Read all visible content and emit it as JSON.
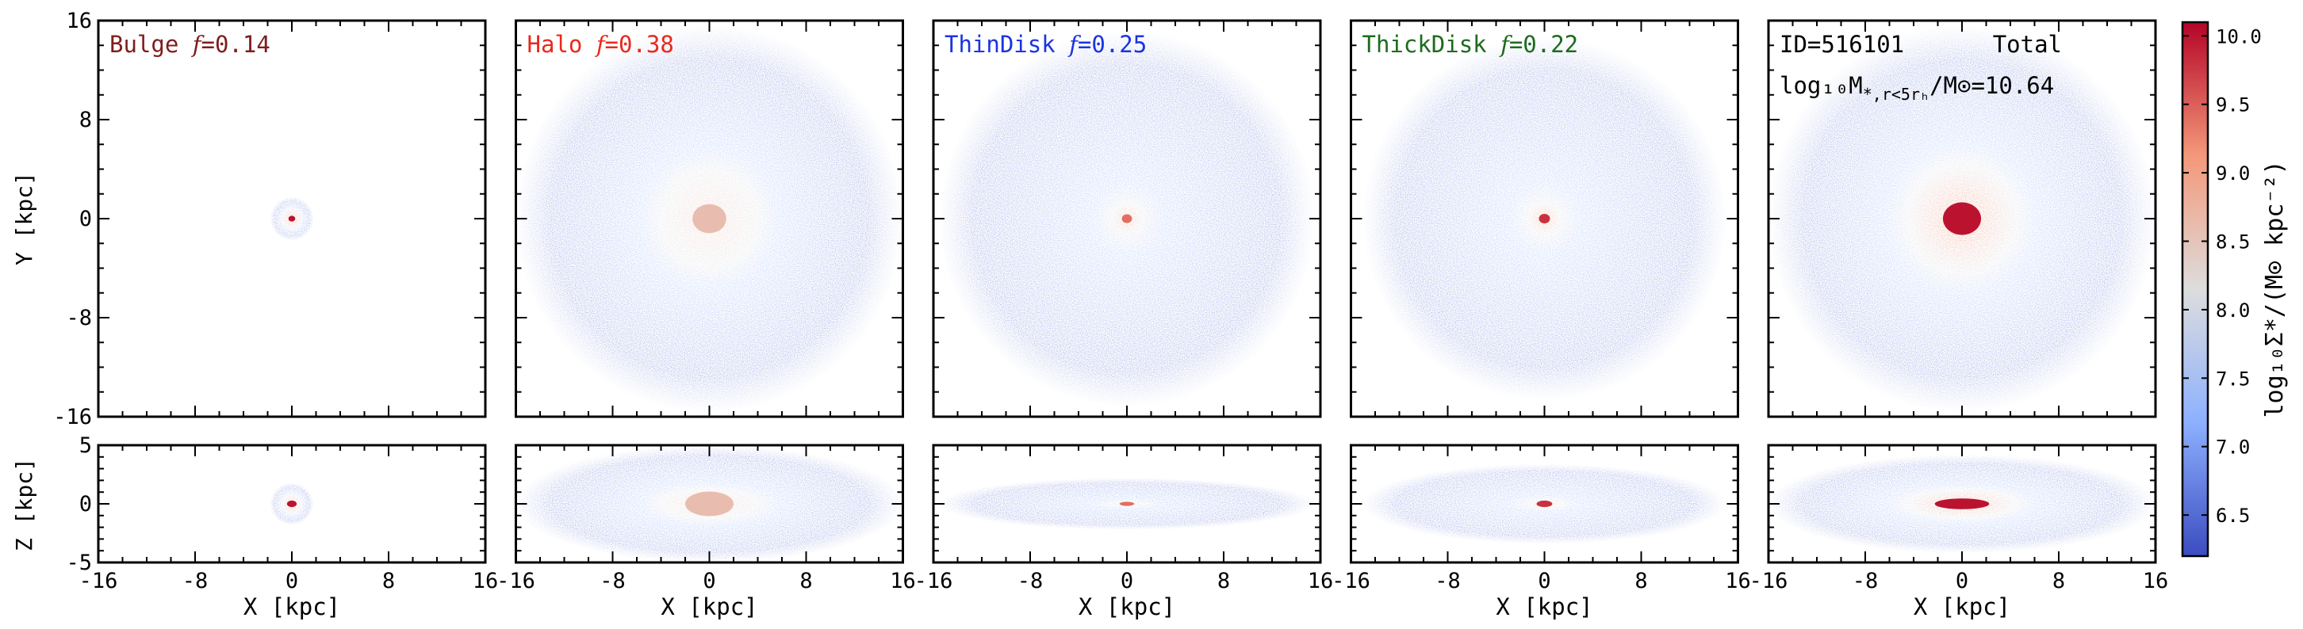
{
  "figure": {
    "xlabel": "X [kpc]",
    "ylabel_top": "Y [kpc]",
    "ylabel_bottom": "Z [kpc]",
    "colorbar_label": "log₁₀Σ*/(M⊙ kpc⁻²)"
  },
  "chart_data": [
    {
      "type": "heatmap",
      "panel": "Bulge",
      "title_prefix": "Bulge",
      "f_value": "=0.14",
      "title_color": "#7f1d1d",
      "face_on": {
        "xlim": [
          -16,
          16
        ],
        "ylim": [
          -16,
          16
        ],
        "xlabel": "X [kpc]",
        "ylabel": "Y [kpc]",
        "yticks": [
          "16",
          "8",
          "0",
          "-8",
          "-16"
        ]
      },
      "edge_on": {
        "xlim": [
          -16,
          16
        ],
        "ylim": [
          -5,
          5
        ],
        "xlabel": "X [kpc]",
        "ylabel": "Z [kpc]",
        "yticks": [
          "5",
          "0",
          "-5"
        ]
      },
      "xticks": [
        "-16",
        "-8",
        "0",
        "8",
        "16"
      ],
      "morphology": {
        "extent_kpc": 1.8,
        "core_kpc": 0.8,
        "peak_log_sigma": 10.0,
        "edge_extent_z_kpc": 1.8,
        "edge_core_z_kpc": 0.8
      }
    },
    {
      "type": "heatmap",
      "panel": "Halo",
      "title_prefix": "Halo",
      "f_value": "=0.38",
      "title_color": "#e8291c",
      "face_on": {
        "xlim": [
          -16,
          16
        ],
        "ylim": [
          -16,
          16
        ],
        "xlabel": "X [kpc]"
      },
      "edge_on": {
        "xlim": [
          -16,
          16
        ],
        "ylim": [
          -5,
          5
        ],
        "xlabel": "X [kpc]"
      },
      "xticks": [
        "-16",
        "-8",
        "0",
        "8",
        "16"
      ],
      "morphology": {
        "extent_kpc": 16,
        "core_kpc": 4,
        "peak_log_sigma": 8.6,
        "edge_extent_z_kpc": 5,
        "edge_core_z_kpc": 3
      }
    },
    {
      "type": "heatmap",
      "panel": "ThinDisk",
      "title_prefix": "ThinDisk",
      "f_value": "=0.25",
      "title_color": "#1a35e0",
      "face_on": {
        "xlim": [
          -16,
          16
        ],
        "ylim": [
          -16,
          16
        ],
        "xlabel": "X [kpc]"
      },
      "edge_on": {
        "xlim": [
          -16,
          16
        ],
        "ylim": [
          -5,
          5
        ],
        "xlabel": "X [kpc]"
      },
      "xticks": [
        "-16",
        "-8",
        "0",
        "8",
        "16"
      ],
      "morphology": {
        "extent_kpc": 15.5,
        "core_kpc": 1.2,
        "peak_log_sigma": 9.4,
        "edge_extent_z_kpc": 2.2,
        "edge_core_z_kpc": 0.5
      }
    },
    {
      "type": "heatmap",
      "panel": "ThickDisk",
      "title_prefix": "ThickDisk",
      "f_value": "=0.22",
      "title_color": "#1d6b1d",
      "face_on": {
        "xlim": [
          -16,
          16
        ],
        "ylim": [
          -16,
          16
        ],
        "xlabel": "X [kpc]"
      },
      "edge_on": {
        "xlim": [
          -16,
          16
        ],
        "ylim": [
          -5,
          5
        ],
        "xlabel": "X [kpc]"
      },
      "xticks": [
        "-16",
        "-8",
        "0",
        "8",
        "16"
      ],
      "morphology": {
        "extent_kpc": 15,
        "core_kpc": 1.3,
        "peak_log_sigma": 9.8,
        "edge_extent_z_kpc": 3.4,
        "edge_core_z_kpc": 0.8
      }
    },
    {
      "type": "heatmap",
      "panel": "Total",
      "id_label": "ID=516101",
      "total_label": "Total",
      "mass_label_prefix": "log₁₀M",
      "mass_label_sub": "*,r<5rₕ",
      "mass_label_suffix": "/M⊙=10.64",
      "title_color": "#000000",
      "face_on": {
        "xlim": [
          -16,
          16
        ],
        "ylim": [
          -16,
          16
        ],
        "xlabel": "X [kpc]"
      },
      "edge_on": {
        "xlim": [
          -16,
          16
        ],
        "ylim": [
          -5,
          5
        ],
        "xlabel": "X [kpc]"
      },
      "xticks": [
        "-16",
        "-8",
        "0",
        "8",
        "16"
      ],
      "morphology": {
        "extent_kpc": 16,
        "core_kpc": 4.5,
        "peak_log_sigma": 10.0,
        "edge_extent_z_kpc": 4.2,
        "edge_core_z_kpc": 1.3
      }
    },
    {
      "type": "colorbar",
      "colormap": "coolwarm",
      "range": [
        6.2,
        10.1
      ],
      "ticks": [
        "10.0",
        "9.5",
        "9.0",
        "8.5",
        "8.0",
        "7.5",
        "7.0",
        "6.5"
      ],
      "tick_values": [
        10.0,
        9.5,
        9.0,
        8.5,
        8.0,
        7.5,
        7.0,
        6.5
      ]
    }
  ]
}
